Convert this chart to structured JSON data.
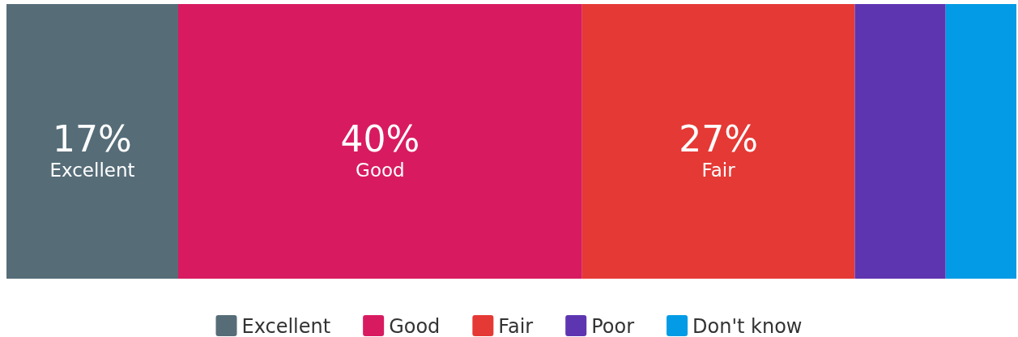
{
  "chart_data": {
    "type": "bar",
    "orientation": "horizontal",
    "stacked": true,
    "categories": [
      null
    ],
    "xlim": [
      0,
      100
    ],
    "tick_labels": false,
    "legend": "bottom",
    "series": [
      {
        "name": "Excellent",
        "color": "#566d78",
        "values": [
          17
        ],
        "value_labels": [
          "17%"
        ]
      },
      {
        "name": "Good",
        "color": "#d81b60",
        "values": [
          40
        ],
        "value_labels": [
          "40%"
        ]
      },
      {
        "name": "Fair",
        "color": "#e53935",
        "values": [
          27
        ],
        "value_labels": [
          "27%"
        ]
      },
      {
        "name": "Poor",
        "color": "#5e35b1",
        "values": [
          9
        ],
        "value_labels": [
          null
        ]
      },
      {
        "name": "Don't know",
        "color": "#039be5",
        "values": [
          7
        ],
        "value_labels": [
          null
        ]
      }
    ]
  }
}
